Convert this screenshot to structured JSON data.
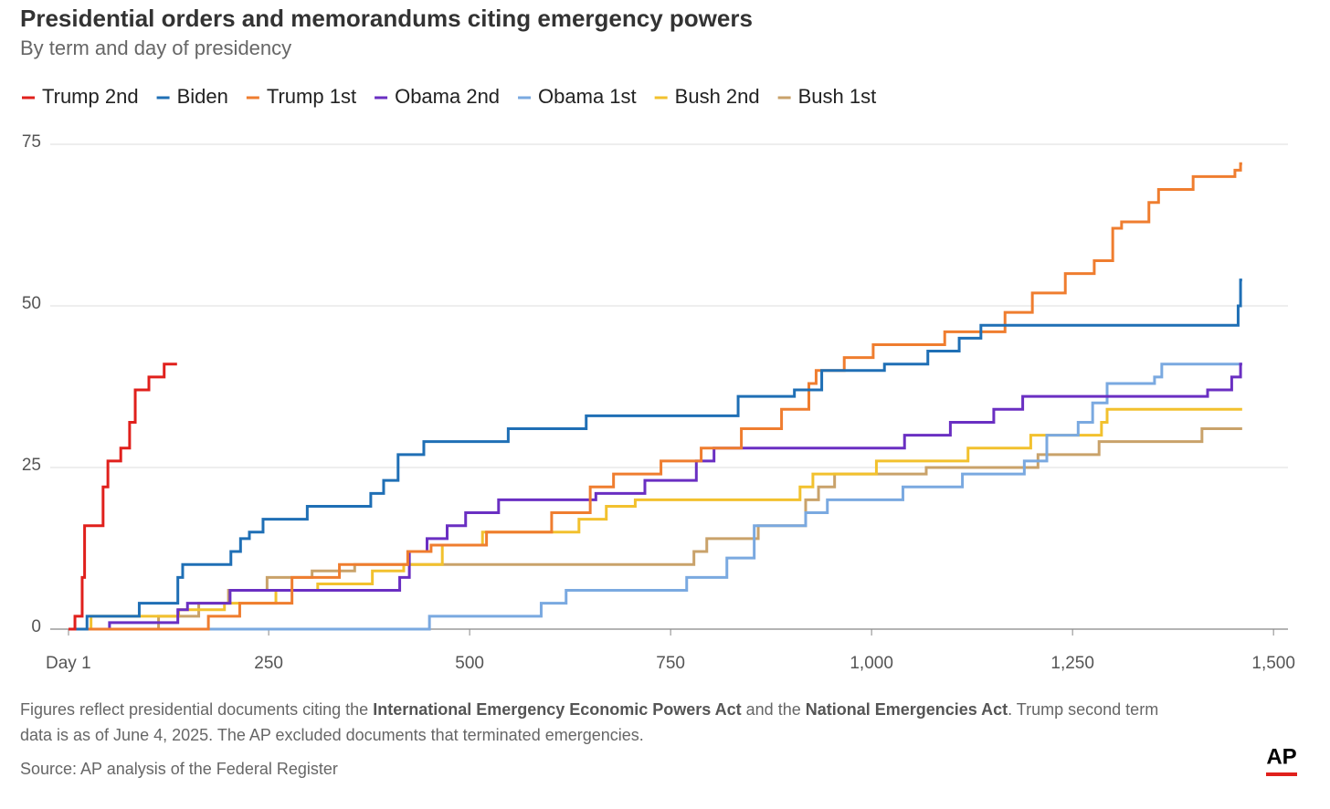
{
  "chart_data": {
    "type": "step-line",
    "title": "Presidential orders and memorandums citing emergency powers",
    "subtitle": "By term and day of presidency",
    "xlim": [
      1,
      1518
    ],
    "ylim": [
      0,
      75
    ],
    "xticks": [
      {
        "value": 1,
        "label": "Day 1"
      },
      250,
      500,
      750,
      {
        "value": 1000,
        "label": "1,000"
      },
      {
        "value": 1250,
        "label": "1,250"
      },
      {
        "value": 1500,
        "label": "1,500"
      }
    ],
    "yticks": [
      0,
      25,
      50,
      75
    ],
    "grid": true,
    "legend": "top-left",
    "series": [
      {
        "name": "Trump 2nd",
        "color": "#e0201c",
        "x": [
          1,
          9,
          18,
          21,
          44,
          50,
          66,
          77,
          84,
          101,
          120,
          136
        ],
        "values": [
          0,
          2,
          8,
          16,
          22,
          26,
          28,
          32,
          37,
          39,
          41,
          41
        ]
      },
      {
        "name": "Biden",
        "color": "#1f6fb5",
        "x": [
          1,
          24,
          89,
          137,
          143,
          203,
          215,
          226,
          243,
          298,
          377,
          393,
          411,
          443,
          548,
          645,
          834,
          904,
          938,
          1016,
          1070,
          1109,
          1136,
          1456,
          1459,
          1461
        ],
        "values": [
          0,
          2,
          4,
          8,
          10,
          12,
          14,
          15,
          17,
          19,
          21,
          23,
          27,
          29,
          31,
          33,
          36,
          37,
          40,
          41,
          43,
          45,
          47,
          50,
          54,
          54
        ]
      },
      {
        "name": "Trump 1st",
        "color": "#ef7d2f",
        "x": [
          1,
          175,
          214,
          279,
          338,
          423,
          452,
          521,
          602,
          650,
          679,
          738,
          788,
          838,
          888,
          922,
          931,
          966,
          1002,
          1091,
          1166,
          1200,
          1241,
          1277,
          1300,
          1311,
          1345,
          1357,
          1400,
          1452,
          1459,
          1461
        ],
        "values": [
          0,
          2,
          4,
          8,
          10,
          12,
          13,
          15,
          18,
          22,
          24,
          26,
          28,
          31,
          34,
          38,
          40,
          42,
          44,
          46,
          49,
          52,
          55,
          57,
          62,
          63,
          66,
          68,
          70,
          71,
          72,
          72
        ]
      },
      {
        "name": "Obama 2nd",
        "color": "#6a2fc2",
        "x": [
          1,
          52,
          137,
          149,
          202,
          413,
          425,
          447,
          472,
          495,
          536,
          657,
          718,
          782,
          804,
          1041,
          1098,
          1152,
          1188,
          1418,
          1448,
          1459,
          1461
        ],
        "values": [
          0,
          1,
          3,
          4,
          6,
          8,
          12,
          14,
          16,
          18,
          20,
          21,
          23,
          26,
          28,
          30,
          32,
          34,
          36,
          37,
          39,
          41,
          41
        ]
      },
      {
        "name": "Obama 1st",
        "color": "#7aa9e0",
        "x": [
          1,
          450,
          589,
          620,
          770,
          820,
          854,
          918,
          945,
          1039,
          1113,
          1190,
          1218,
          1257,
          1275,
          1293,
          1352,
          1361,
          1461
        ],
        "values": [
          0,
          2,
          4,
          6,
          8,
          11,
          16,
          18,
          20,
          22,
          24,
          26,
          30,
          32,
          35,
          38,
          39,
          41,
          41
        ]
      },
      {
        "name": "Bush 2nd",
        "color": "#f2c12e",
        "x": [
          1,
          29,
          138,
          195,
          259,
          311,
          379,
          418,
          466,
          516,
          636,
          670,
          706,
          911,
          927,
          1006,
          1120,
          1198,
          1286,
          1293,
          1461
        ],
        "values": [
          0,
          2,
          3,
          4,
          6,
          7,
          9,
          10,
          13,
          15,
          17,
          19,
          20,
          22,
          24,
          26,
          28,
          30,
          32,
          34,
          34
        ]
      },
      {
        "name": "Bush 1st",
        "color": "#c9a26a",
        "x": [
          1,
          113,
          163,
          200,
          248,
          304,
          357,
          779,
          795,
          859,
          918,
          934,
          954,
          1068,
          1207,
          1283,
          1411,
          1461
        ],
        "values": [
          0,
          2,
          4,
          6,
          8,
          9,
          10,
          12,
          14,
          16,
          20,
          22,
          24,
          25,
          27,
          29,
          31,
          31
        ]
      }
    ],
    "note": [
      "Figures reflect presidential documents citing the ",
      "International Emergency Economic Powers Act",
      " and the ",
      "National Emergencies Act",
      ". Trump second term",
      "data is as of June 4, 2025. The AP excluded documents that terminated emergencies."
    ],
    "source": "Source: AP analysis of the Federal Register",
    "logo": "AP"
  }
}
